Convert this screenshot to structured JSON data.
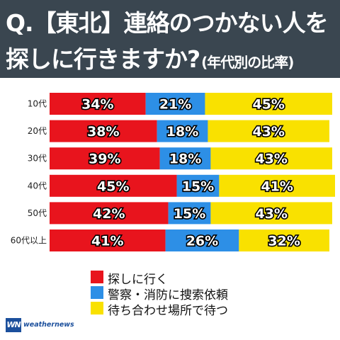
{
  "header": {
    "line1": "Q.【東北】連絡のつかない人を",
    "line2_main": "探しに行きますか?",
    "line2_sub": "(年代別の比率)"
  },
  "chart_data": {
    "type": "bar",
    "stacked": true,
    "orientation": "horizontal",
    "categories": [
      "10代",
      "20代",
      "30代",
      "40代",
      "50代",
      "60代以上"
    ],
    "series": [
      {
        "name": "探しに行く",
        "color": "#e8141d",
        "values": [
          34,
          38,
          39,
          45,
          42,
          41
        ],
        "labels": [
          "34%",
          "38%",
          "39%",
          "45%",
          "42%",
          "41%"
        ]
      },
      {
        "name": "警察・消防に捜索依頼",
        "color": "#2d8fe6",
        "values": [
          21,
          18,
          18,
          15,
          15,
          26
        ],
        "labels": [
          "21%",
          "18%",
          "18%",
          "15%",
          "15%",
          "26%"
        ]
      },
      {
        "name": "待ち合わせ場所で待つ",
        "color": "#f9e100",
        "values": [
          45,
          43,
          43,
          41,
          43,
          32
        ],
        "labels": [
          "45%",
          "43%",
          "43%",
          "41%",
          "43%",
          "32%"
        ]
      }
    ],
    "xlim": [
      0,
      100
    ],
    "legend_position": "bottom"
  },
  "legend": [
    {
      "label": "探しに行く",
      "color": "#e8141d"
    },
    {
      "label": "警察・消防に捜索依頼",
      "color": "#2d8fe6"
    },
    {
      "label": "待ち合わせ場所で待つ",
      "color": "#f9e100"
    }
  ],
  "logo": {
    "mark": "WN",
    "text": "weathernews"
  }
}
